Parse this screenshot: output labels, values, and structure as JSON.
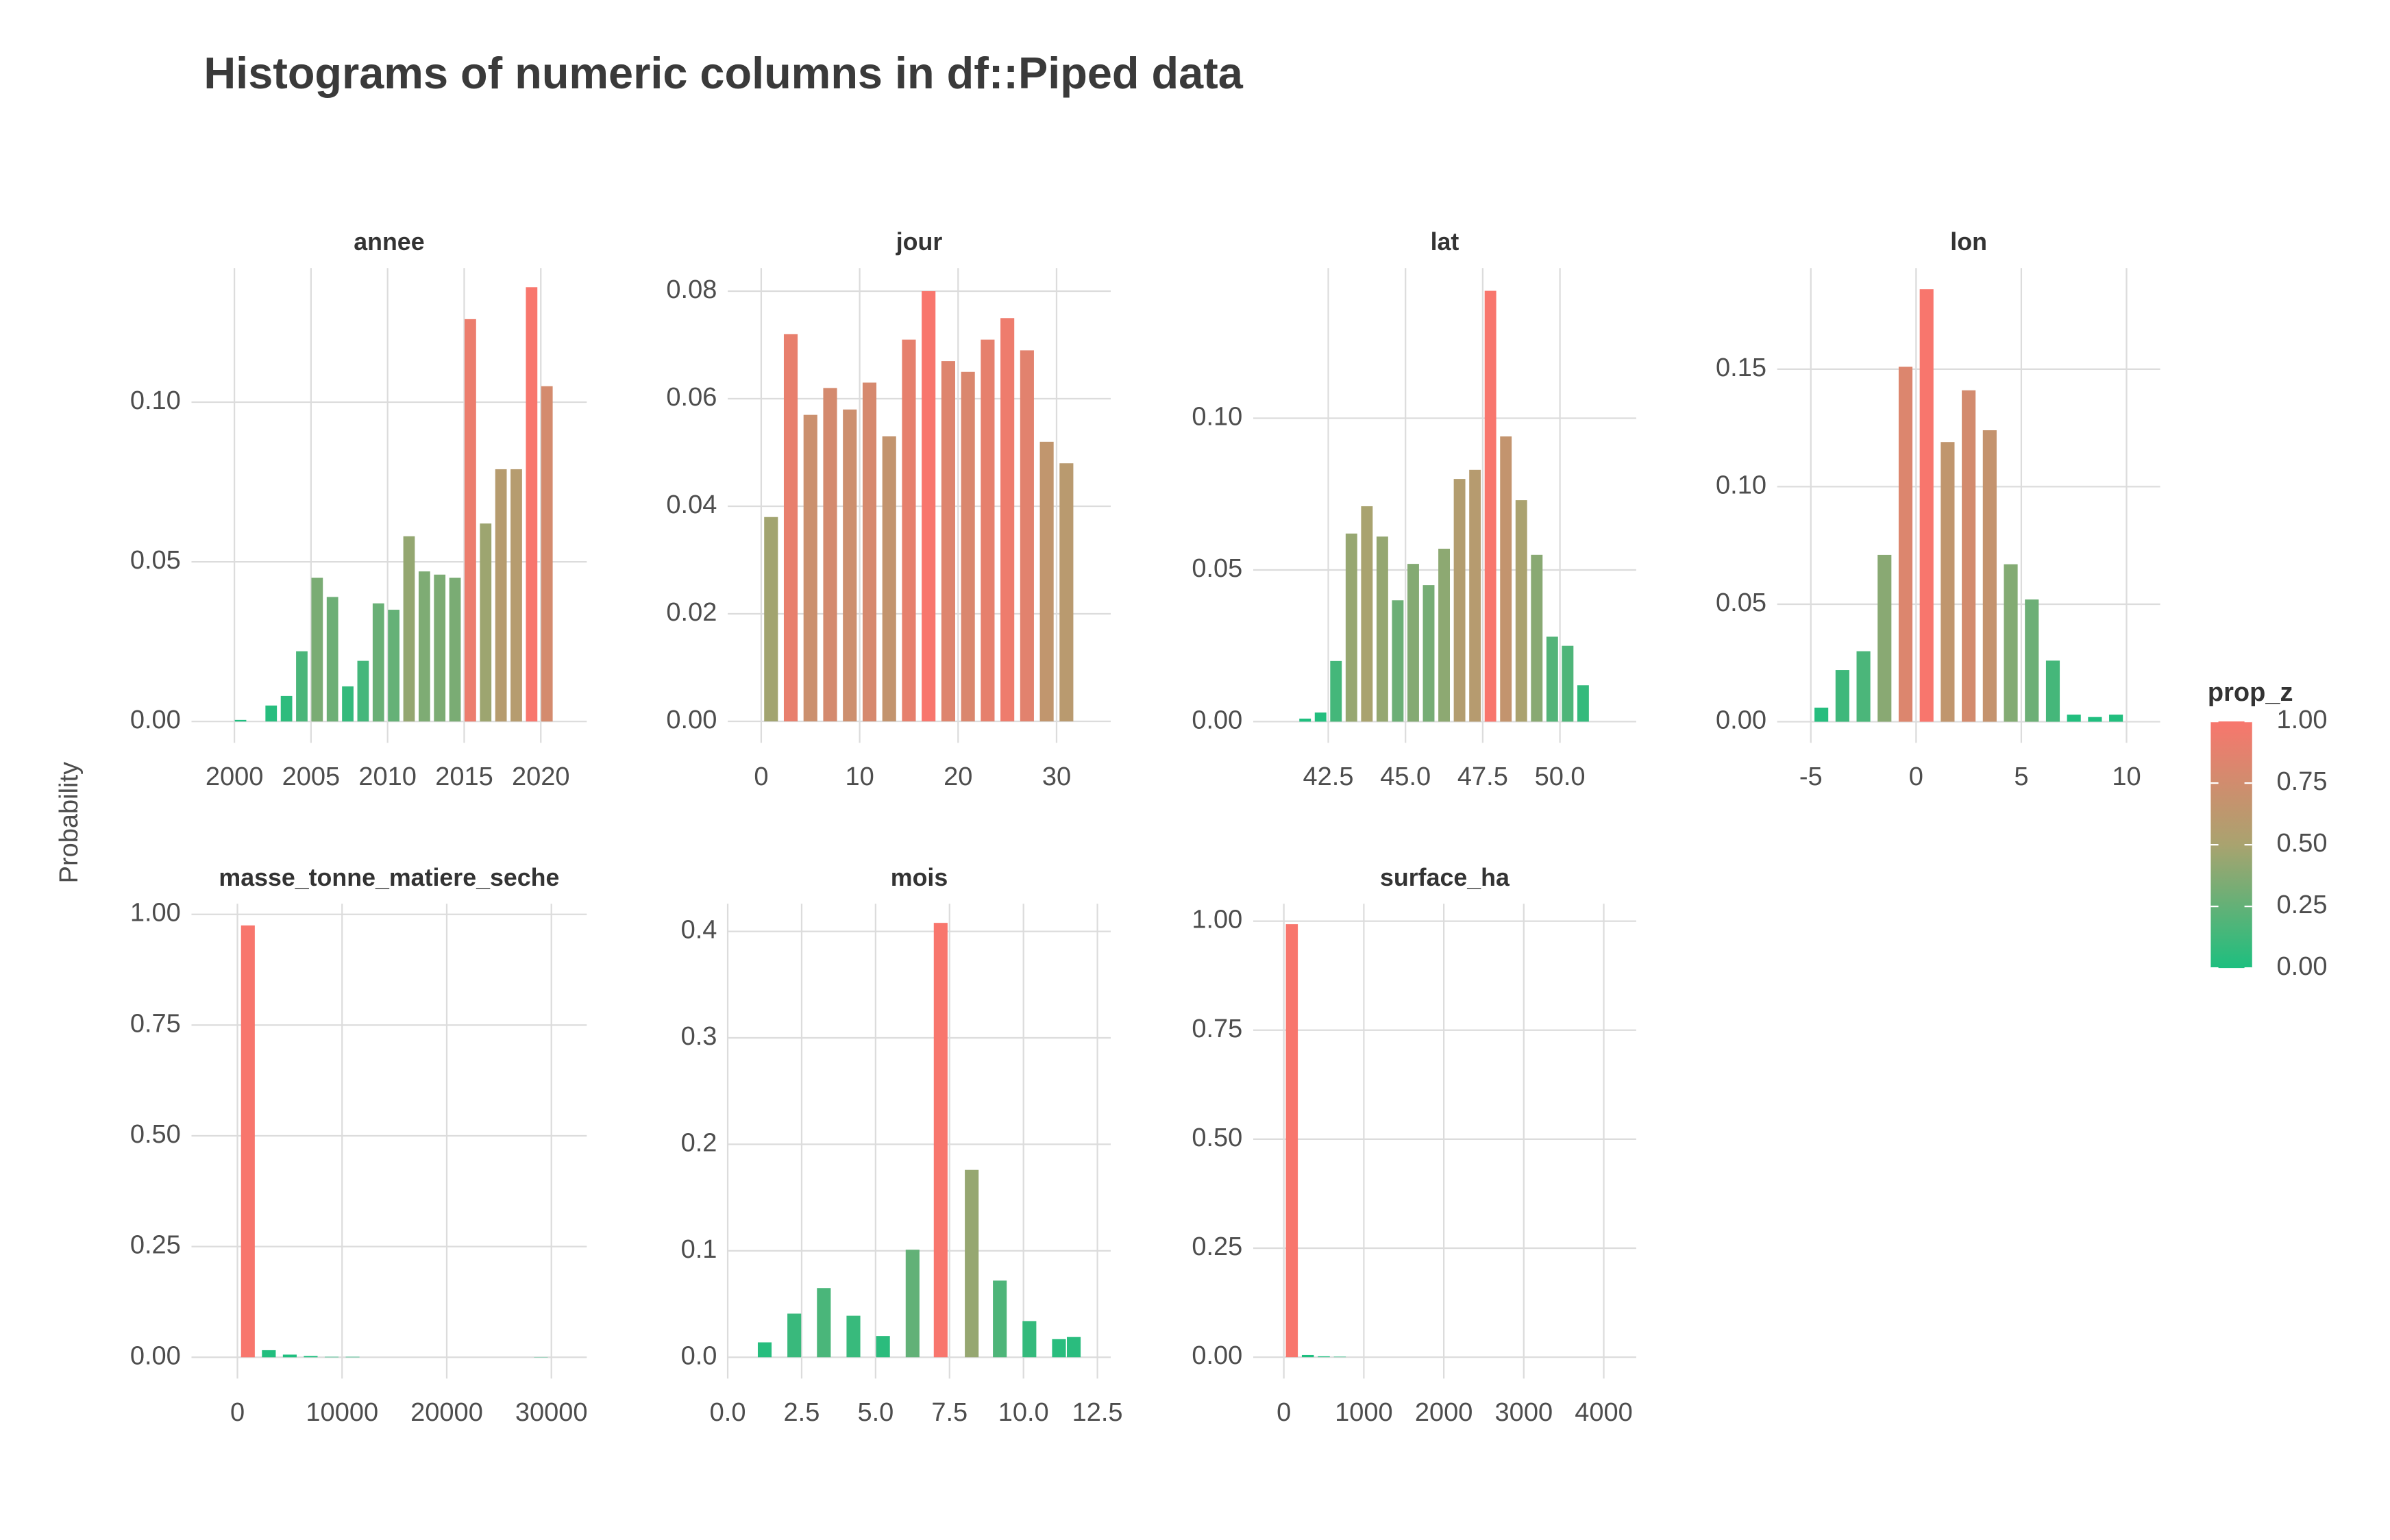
{
  "title": "Histograms of numeric columns in df::Piped data",
  "y_label": "Probability",
  "legend": {
    "title": "prop_z",
    "colors": [
      "#1DBF7F",
      "#A9A36F",
      "#F8766D"
    ],
    "ticks": [
      {
        "value": 0,
        "label": "0.00"
      },
      {
        "value": 0.25,
        "label": "0.25"
      },
      {
        "value": 0.5,
        "label": "0.50"
      },
      {
        "value": 0.75,
        "label": "0.75"
      },
      {
        "value": 1,
        "label": "1.00"
      }
    ]
  },
  "chart_data": [
    {
      "type": "bar",
      "title": "annee",
      "x": [
        2000.4,
        2001.4,
        2002.4,
        2003.4,
        2004.4,
        2005.4,
        2006.4,
        2007.4,
        2008.4,
        2009.4,
        2010.4,
        2011.4,
        2012.4,
        2013.4,
        2014.4,
        2015.4,
        2016.4,
        2017.4,
        2018.4,
        2019.4,
        2020.4
      ],
      "values": [
        0.0005,
        0,
        0.005,
        0.008,
        0.022,
        0.045,
        0.039,
        0.011,
        0.019,
        0.037,
        0.035,
        0.058,
        0.047,
        0.046,
        0.045,
        0.126,
        0.062,
        0.079,
        0.079,
        0.136,
        0.105
      ],
      "xlim": [
        1997.2,
        2023
      ],
      "xticks": [
        2000,
        2005,
        2010,
        2015,
        2020
      ],
      "ylim": [
        -0.0067,
        0.142
      ],
      "yticks": [
        {
          "value": 0,
          "label": "0.00"
        },
        {
          "value": 0.05,
          "label": "0.05"
        },
        {
          "value": 0.1,
          "label": "0.10"
        }
      ],
      "grid": true
    },
    {
      "type": "bar",
      "title": "jour",
      "x": [
        1,
        3,
        5,
        7,
        9,
        11,
        13,
        15,
        17,
        19,
        21,
        23,
        25,
        27,
        29,
        31
      ],
      "values": [
        0.038,
        0.072,
        0.057,
        0.062,
        0.058,
        0.063,
        0.053,
        0.071,
        0.08,
        0.067,
        0.065,
        0.071,
        0.075,
        0.069,
        0.052,
        0.048
      ],
      "xlim": [
        -3.4,
        35.5
      ],
      "xticks": [
        0,
        10,
        20,
        30
      ],
      "ylim": [
        -0.004,
        0.0843
      ],
      "yticks": [
        {
          "value": 0,
          "label": "0.00"
        },
        {
          "value": 0.02,
          "label": "0.02"
        },
        {
          "value": 0.04,
          "label": "0.04"
        },
        {
          "value": 0.06,
          "label": "0.06"
        },
        {
          "value": 0.08,
          "label": "0.08"
        }
      ],
      "grid": true
    },
    {
      "type": "bar",
      "title": "lat",
      "x": [
        41.75,
        42.25,
        42.75,
        43.25,
        43.75,
        44.25,
        44.75,
        45.25,
        45.75,
        46.25,
        46.75,
        47.25,
        47.75,
        48.25,
        48.75,
        49.25,
        49.75,
        50.25,
        50.75
      ],
      "values": [
        0.001,
        0.003,
        0.02,
        0.062,
        0.071,
        0.061,
        0.04,
        0.052,
        0.045,
        0.057,
        0.08,
        0.083,
        0.142,
        0.094,
        0.073,
        0.055,
        0.028,
        0.025,
        0.012
      ],
      "xlim": [
        40.07,
        52.47
      ],
      "xticks": [
        42.5,
        {
          "value": 45,
          "label": "45.0"
        },
        47.5,
        {
          "value": 50,
          "label": "50.0"
        }
      ],
      "ylim": [
        -0.007,
        0.1495
      ],
      "yticks": [
        {
          "value": 0,
          "label": "0.00"
        },
        {
          "value": 0.05,
          "label": "0.05"
        },
        {
          "value": 0.1,
          "label": "0.10"
        }
      ],
      "grid": true
    },
    {
      "type": "bar",
      "title": "lon",
      "x": [
        -4.5,
        -3.5,
        -2.5,
        -1.5,
        -0.5,
        0.5,
        1.5,
        2.5,
        3.5,
        4.5,
        5.5,
        6.5,
        7.5,
        8.5,
        9.5
      ],
      "values": [
        0.006,
        0.022,
        0.03,
        0.071,
        0.151,
        0.184,
        0.119,
        0.141,
        0.124,
        0.067,
        0.052,
        0.026,
        0.003,
        0.002,
        0.003
      ],
      "xlim": [
        -6.6,
        11.6
      ],
      "xticks": [
        -5,
        0,
        5,
        10
      ],
      "ylim": [
        -0.009,
        0.193
      ],
      "yticks": [
        {
          "value": 0,
          "label": "0.00"
        },
        {
          "value": 0.05,
          "label": "0.05"
        },
        {
          "value": 0.1,
          "label": "0.10"
        },
        {
          "value": 0.15,
          "label": "0.15"
        }
      ],
      "grid": true
    },
    {
      "type": "bar",
      "title": "masse_tonne_matiere_seche",
      "x": [
        1000,
        3000,
        5000,
        7000,
        9000,
        11000,
        13000,
        15000,
        17000,
        19000,
        21000,
        23000,
        25000,
        27000,
        29000,
        31000
      ],
      "values": [
        0.975,
        0.016,
        0.006,
        0.003,
        0.001,
        0.001,
        0,
        0,
        0,
        0,
        0,
        0,
        0,
        0,
        0.0005,
        0
      ],
      "xlim": [
        -4390,
        33380
      ],
      "xticks": [
        0,
        10000,
        20000,
        30000
      ],
      "ylim": [
        -0.048,
        1.024
      ],
      "yticks": [
        {
          "value": 0,
          "label": "0.00"
        },
        {
          "value": 0.25,
          "label": "0.25"
        },
        {
          "value": 0.5,
          "label": "0.50"
        },
        {
          "value": 0.75,
          "label": "0.75"
        },
        {
          "value": 1,
          "label": "1.00"
        }
      ],
      "grid": true
    },
    {
      "type": "bar",
      "title": "mois",
      "x": [
        1.25,
        2.25,
        3.25,
        4.25,
        5.25,
        6.25,
        7.2,
        8.25,
        9.2,
        10.2,
        11.2,
        11.7
      ],
      "values": [
        0.014,
        0.041,
        0.065,
        0.039,
        0.02,
        0.101,
        0.408,
        0.176,
        0.072,
        0.034,
        0.017,
        0.019
      ],
      "xlim": [
        0,
        12.95
      ],
      "xticks": [
        {
          "value": 0,
          "label": "0.0"
        },
        2.5,
        {
          "value": 5,
          "label": "5.0"
        },
        7.5,
        {
          "value": 10,
          "label": "10.0"
        },
        12.5
      ],
      "ylim": [
        -0.02,
        0.426
      ],
      "yticks": [
        {
          "value": 0,
          "label": "0.0"
        },
        0.1,
        0.2,
        0.3,
        0.4
      ],
      "grid": true
    },
    {
      "type": "bar",
      "title": "surface_ha",
      "x": [
        100,
        300,
        500,
        700
      ],
      "values": [
        0.993,
        0.005,
        0.002,
        0.001
      ],
      "xlim": [
        -383,
        4406
      ],
      "xticks": [
        0,
        1000,
        2000,
        3000,
        4000
      ],
      "ylim": [
        -0.049,
        1.04
      ],
      "yticks": [
        {
          "value": 0,
          "label": "0.00"
        },
        {
          "value": 0.25,
          "label": "0.25"
        },
        {
          "value": 0.5,
          "label": "0.50"
        },
        {
          "value": 0.75,
          "label": "0.75"
        },
        {
          "value": 1,
          "label": "1.00"
        }
      ],
      "grid": true
    }
  ]
}
